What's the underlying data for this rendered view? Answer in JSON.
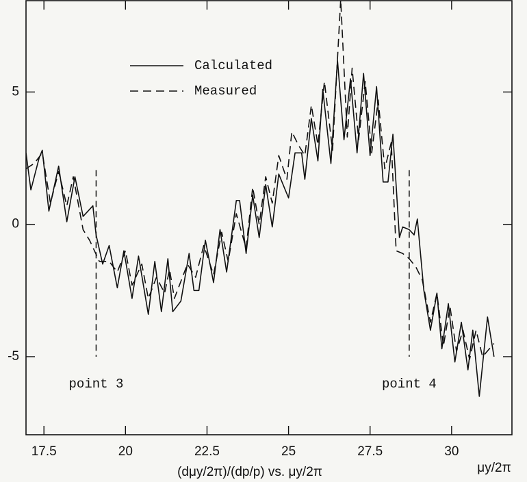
{
  "chart_data": {
    "type": "line",
    "xlabel": "(dμy/2π)/(dp/p) vs. μy/2π",
    "x_corner_label": "μy/2π",
    "xlim": [
      16.95,
      31.85
    ],
    "ylim": [
      -7.95,
      8.45
    ],
    "xticks": [
      17.5,
      20,
      22.5,
      25,
      27.5,
      30
    ],
    "yticks": [
      -5,
      0,
      5
    ],
    "legend": "upper left",
    "series": [
      {
        "name": "Calculated",
        "color": "#111111",
        "dash": "solid",
        "x": [
          16.95,
          17.1,
          17.35,
          17.45,
          17.65,
          17.95,
          18.2,
          18.45,
          18.7,
          19.0,
          19.1,
          19.3,
          19.5,
          19.75,
          19.95,
          20.2,
          20.4,
          20.7,
          20.9,
          21.1,
          21.3,
          21.45,
          21.7,
          21.95,
          22.1,
          22.25,
          22.45,
          22.7,
          22.9,
          23.1,
          23.4,
          23.5,
          23.7,
          23.9,
          24.1,
          24.3,
          24.5,
          24.7,
          24.9,
          25.0,
          25.2,
          25.4,
          25.5,
          25.7,
          25.9,
          26.05,
          26.3,
          26.5,
          26.7,
          26.9,
          27.1,
          27.3,
          27.5,
          27.7,
          27.9,
          28.05,
          28.2,
          28.4,
          28.5,
          28.7,
          28.85,
          28.95,
          29.15,
          29.35,
          29.55,
          29.7,
          29.9,
          30.1,
          30.3,
          30.5,
          30.65,
          30.85,
          31.1,
          31.3
        ],
        "values": [
          2.7,
          1.3,
          2.5,
          2.8,
          0.5,
          2.2,
          0.1,
          1.8,
          0.3,
          0.7,
          -0.4,
          -1.5,
          -0.8,
          -2.4,
          -1.0,
          -2.8,
          -1.2,
          -3.4,
          -1.4,
          -3.3,
          -1.3,
          -3.3,
          -2.9,
          -1.1,
          -2.5,
          -2.5,
          -0.6,
          -2.2,
          -0.2,
          -1.8,
          0.9,
          0.9,
          -1.1,
          1.1,
          -0.5,
          1.5,
          -0.1,
          1.9,
          1.3,
          1.0,
          2.7,
          2.7,
          1.7,
          4.0,
          2.4,
          5.1,
          2.3,
          6.2,
          3.2,
          5.5,
          2.7,
          5.7,
          2.6,
          5.2,
          1.6,
          1.6,
          3.4,
          -0.5,
          -0.1,
          -0.2,
          -0.4,
          0.2,
          -2.5,
          -4.0,
          -2.6,
          -4.7,
          -3.0,
          -5.2,
          -3.7,
          -5.5,
          -4.0,
          -6.5,
          -3.5,
          -5.0
        ]
      },
      {
        "name": "Measured",
        "color": "#111111",
        "dash": "dashed",
        "x": [
          16.95,
          17.2,
          17.45,
          17.7,
          17.95,
          18.2,
          18.4,
          18.7,
          18.9,
          19.2,
          19.5,
          19.75,
          20.0,
          20.2,
          20.5,
          20.7,
          20.95,
          21.2,
          21.35,
          21.5,
          21.9,
          22.15,
          22.4,
          22.7,
          22.95,
          23.15,
          23.4,
          23.7,
          23.9,
          24.1,
          24.3,
          24.5,
          24.7,
          24.95,
          25.1,
          25.3,
          25.5,
          25.7,
          25.9,
          26.1,
          26.35,
          26.6,
          26.8,
          26.95,
          27.15,
          27.35,
          27.55,
          27.75,
          27.95,
          28.15,
          28.3,
          28.5,
          28.7,
          28.9,
          29.1,
          29.35,
          29.55,
          29.75,
          29.95,
          30.15,
          30.35,
          30.55,
          30.75,
          30.95,
          31.3
        ],
        "values": [
          2.1,
          2.3,
          2.7,
          0.8,
          2.0,
          0.7,
          1.8,
          -0.2,
          -0.6,
          -1.4,
          -1.4,
          -1.8,
          -1.0,
          -2.3,
          -1.5,
          -2.8,
          -2.0,
          -2.6,
          -1.7,
          -2.8,
          -1.5,
          -2.0,
          -0.8,
          -1.9,
          -0.3,
          -1.4,
          0.4,
          -0.9,
          1.4,
          0.0,
          1.8,
          0.8,
          2.6,
          1.7,
          3.5,
          3.0,
          2.6,
          4.5,
          3.0,
          5.4,
          2.8,
          8.5,
          3.3,
          5.9,
          3.2,
          5.4,
          2.7,
          4.7,
          2.1,
          3.1,
          -1.0,
          -1.1,
          -1.3,
          -1.6,
          -2.1,
          -3.7,
          -2.6,
          -4.6,
          -3.1,
          -4.8,
          -4.0,
          -5.1,
          -4.0,
          -5.0,
          -4.5
        ]
      }
    ],
    "annotations": [
      {
        "text": "point 3",
        "x": 19.1,
        "y_top": 2.05,
        "y_bottom": -5.0
      },
      {
        "text": "point 4",
        "x": 28.7,
        "y_top": 2.05,
        "y_bottom": -5.0
      }
    ]
  }
}
